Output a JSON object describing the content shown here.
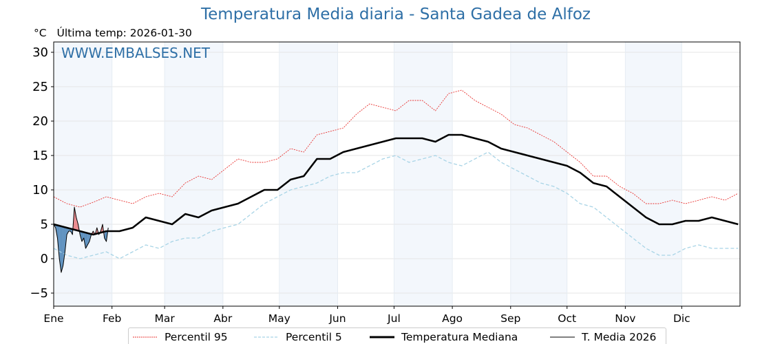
{
  "header": {
    "title": "Temperatura Media diaria - Santa Gadea de Alfoz",
    "unit": "°C",
    "last_temp": "Última temp: 2026-01-30"
  },
  "watermark": "WWW.EMBALSES.NET",
  "colors": {
    "p95": "#e8312f",
    "p5": "#a8d4e6",
    "median": "#000000",
    "current": "#000000",
    "warm": "#e8777a",
    "cold": "#3a78b0",
    "band": "#f3f7fc",
    "title": "#2e6fa6"
  },
  "chart_data": {
    "type": "line",
    "title": "Temperatura Media diaria - Santa Gadea de Alfoz",
    "ylabel": "°C",
    "ylim": [
      -6.9,
      31.5
    ],
    "yticks": [
      -5,
      0,
      5,
      10,
      15,
      20,
      25,
      30
    ],
    "ytick_labels": [
      "−5",
      "0",
      "5",
      "10",
      "15",
      "20",
      "25",
      "30"
    ],
    "xlim": [
      1,
      366
    ],
    "xticks": [
      1,
      32,
      60,
      91,
      121,
      152,
      182,
      213,
      244,
      274,
      305,
      335
    ],
    "xtick_labels": [
      "Ene",
      "Feb",
      "Mar",
      "Abr",
      "May",
      "Jun",
      "Jul",
      "Ago",
      "Sep",
      "Oct",
      "Nov",
      "Dic"
    ],
    "grid": true,
    "legend_position": "bottom",
    "series": [
      {
        "name": "Percentil 95",
        "style": "dotted-red",
        "x": [
          1,
          8,
          15,
          22,
          29,
          36,
          43,
          50,
          57,
          64,
          71,
          78,
          85,
          92,
          99,
          106,
          113,
          120,
          127,
          134,
          141,
          148,
          155,
          162,
          169,
          176,
          183,
          190,
          197,
          204,
          211,
          218,
          225,
          232,
          239,
          246,
          253,
          260,
          267,
          274,
          281,
          288,
          295,
          302,
          309,
          316,
          323,
          330,
          337,
          344,
          351,
          358,
          365
        ],
        "values": [
          9.0,
          8.0,
          7.5,
          8.2,
          9.0,
          8.5,
          8.0,
          9.0,
          9.5,
          9.0,
          11.0,
          12.0,
          11.5,
          13.0,
          14.5,
          14.0,
          14.0,
          14.5,
          16.0,
          15.5,
          18.0,
          18.5,
          19.0,
          21.0,
          22.5,
          22.0,
          21.5,
          23.0,
          23.0,
          21.5,
          24.0,
          24.5,
          23.0,
          22.0,
          21.0,
          19.5,
          19.0,
          18.0,
          17.0,
          15.5,
          14.0,
          12.0,
          12.0,
          10.5,
          9.5,
          8.0,
          8.0,
          8.5,
          8.0,
          8.5,
          9.0,
          8.5,
          9.5
        ]
      },
      {
        "name": "Percentil 5",
        "style": "dashed-lightblue",
        "x": [
          1,
          8,
          15,
          22,
          29,
          36,
          43,
          50,
          57,
          64,
          71,
          78,
          85,
          92,
          99,
          106,
          113,
          120,
          127,
          134,
          141,
          148,
          155,
          162,
          169,
          176,
          183,
          190,
          197,
          204,
          211,
          218,
          225,
          232,
          239,
          246,
          253,
          260,
          267,
          274,
          281,
          288,
          295,
          302,
          309,
          316,
          323,
          330,
          337,
          344,
          351,
          358,
          365
        ],
        "values": [
          1.5,
          0.5,
          0.0,
          0.5,
          1.0,
          0.0,
          1.0,
          2.0,
          1.5,
          2.5,
          3.0,
          3.0,
          4.0,
          4.5,
          5.0,
          6.5,
          8.0,
          9.0,
          10.0,
          10.5,
          11.0,
          12.0,
          12.5,
          12.5,
          13.5,
          14.5,
          15.0,
          14.0,
          14.5,
          15.0,
          14.0,
          13.5,
          14.5,
          15.5,
          14.0,
          13.0,
          12.0,
          11.0,
          10.5,
          9.5,
          8.0,
          7.5,
          6.0,
          4.5,
          3.0,
          1.5,
          0.5,
          0.5,
          1.5,
          2.0,
          1.5,
          1.5,
          1.5
        ]
      },
      {
        "name": "Temperatura Mediana",
        "style": "thick-black",
        "x": [
          1,
          8,
          15,
          22,
          29,
          36,
          43,
          50,
          57,
          64,
          71,
          78,
          85,
          92,
          99,
          106,
          113,
          120,
          127,
          134,
          141,
          148,
          155,
          162,
          169,
          176,
          183,
          190,
          197,
          204,
          211,
          218,
          225,
          232,
          239,
          246,
          253,
          260,
          267,
          274,
          281,
          288,
          295,
          302,
          309,
          316,
          323,
          330,
          337,
          344,
          351,
          358,
          365
        ],
        "values": [
          5.0,
          4.5,
          4.0,
          3.5,
          4.0,
          4.0,
          4.5,
          6.0,
          5.5,
          5.0,
          6.5,
          6.0,
          7.0,
          7.5,
          8.0,
          9.0,
          10.0,
          10.0,
          11.5,
          12.0,
          14.5,
          14.5,
          15.5,
          16.0,
          16.5,
          17.0,
          17.5,
          17.5,
          17.5,
          17.0,
          18.0,
          18.0,
          17.5,
          17.0,
          16.0,
          15.5,
          15.0,
          14.5,
          14.0,
          13.5,
          12.5,
          11.0,
          10.5,
          9.0,
          7.5,
          6.0,
          5.0,
          5.0,
          5.5,
          5.5,
          6.0,
          5.5,
          5.0
        ]
      },
      {
        "name": "T. Media 2026",
        "style": "thin-black",
        "x": [
          1,
          2,
          3,
          4,
          5,
          6,
          7,
          8,
          9,
          10,
          11,
          12,
          13,
          14,
          15,
          16,
          17,
          18,
          19,
          20,
          21,
          22,
          23,
          24,
          25,
          26,
          27,
          28,
          29,
          30
        ],
        "values": [
          5.0,
          4.5,
          3.0,
          0.0,
          -2.0,
          -1.0,
          1.0,
          3.5,
          4.0,
          4.0,
          3.5,
          7.5,
          6.0,
          5.0,
          3.5,
          2.5,
          3.0,
          1.5,
          2.0,
          2.5,
          3.5,
          4.0,
          3.5,
          4.5,
          3.5,
          4.0,
          5.0,
          3.0,
          2.5,
          4.5
        ]
      }
    ]
  },
  "legend": [
    {
      "label": "Percentil 95"
    },
    {
      "label": "Percentil 5"
    },
    {
      "label": "Temperatura Mediana"
    },
    {
      "label": "T. Media 2026"
    }
  ]
}
